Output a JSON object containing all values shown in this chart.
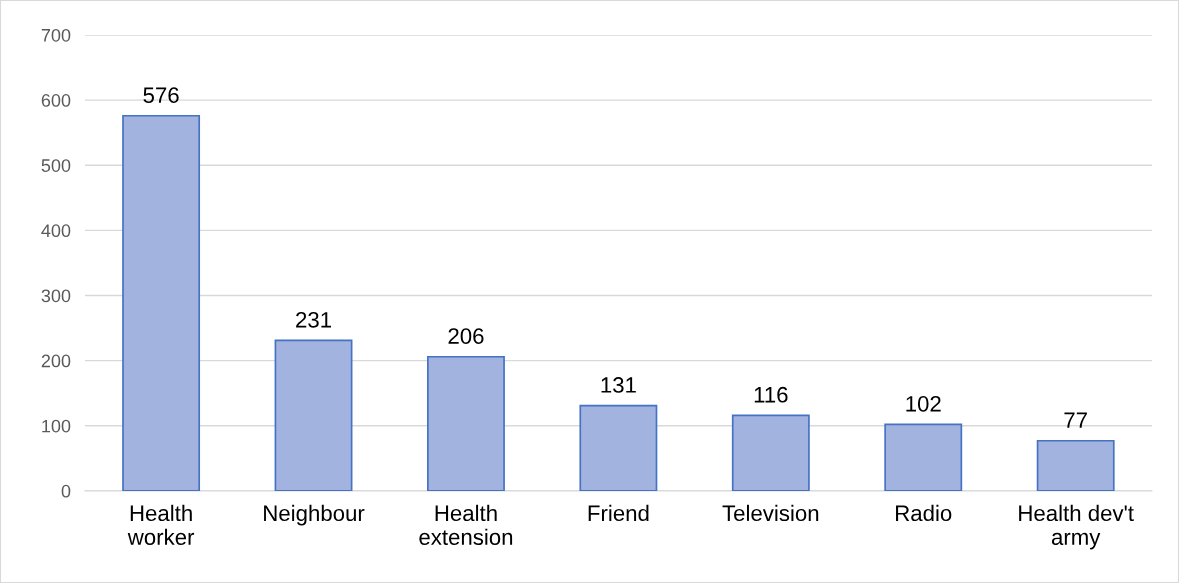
{
  "chart_data": {
    "type": "bar",
    "categories": [
      "Health\nworker",
      "Neighbour",
      "Health\nextension",
      "Friend",
      "Television",
      "Radio",
      "Health dev't\narmy"
    ],
    "values": [
      576,
      231,
      206,
      131,
      116,
      102,
      77
    ],
    "color": "#a3b3df",
    "ylim": [
      0,
      700
    ],
    "yticks": [
      0,
      100,
      200,
      300,
      400,
      500,
      600,
      700
    ],
    "grid": "y",
    "data_labels": true
  }
}
